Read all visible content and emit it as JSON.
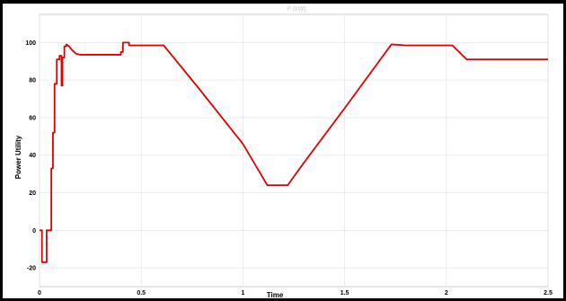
{
  "chart_data": {
    "type": "line",
    "title": "P (kW)",
    "xlabel": "Time",
    "ylabel": "Power Utility",
    "xlim": [
      0,
      2.5
    ],
    "ylim": [
      -30,
      115
    ],
    "xticks": [
      0,
      0.5,
      1,
      1.5,
      2,
      2.5
    ],
    "xtick_labels": [
      "0",
      "0.5",
      "1",
      "1.5",
      "2",
      "2.5"
    ],
    "yticks": [
      -20,
      0,
      20,
      40,
      60,
      80,
      100
    ],
    "ytick_labels": [
      "-20",
      "0",
      "20",
      "40",
      "60",
      "80",
      "100"
    ],
    "grid": true,
    "series": [
      {
        "color": "#e00000",
        "x": [
          0,
          0.012,
          0.012,
          0.035,
          0.035,
          0.058,
          0.058,
          0.066,
          0.066,
          0.074,
          0.074,
          0.085,
          0.085,
          0.098,
          0.098,
          0.108,
          0.108,
          0.113,
          0.113,
          0.122,
          0.122,
          0.132,
          0.132,
          0.145,
          0.16,
          0.18,
          0.2,
          0.22,
          0.26,
          0.3,
          0.34,
          0.4,
          0.4,
          0.41,
          0.41,
          0.44,
          0.44,
          0.5,
          0.55,
          0.6,
          0.61,
          0.78,
          1.0,
          1.12,
          1.2,
          1.22,
          1.3,
          1.5,
          1.73,
          1.8,
          2.0,
          2.03,
          2.1,
          2.3,
          2.5
        ],
        "y": [
          0,
          0,
          -17,
          -17,
          0,
          0,
          33,
          33,
          52,
          52,
          78,
          78,
          91,
          91,
          93,
          93,
          77,
          77,
          92,
          92,
          98,
          98,
          99,
          98,
          96,
          94,
          93.5,
          93.5,
          93.5,
          93.5,
          93.5,
          93.5,
          95,
          95,
          100,
          100,
          98.5,
          98.5,
          98.5,
          98.5,
          98.5,
          76,
          46,
          24,
          24,
          24,
          36,
          65,
          99,
          98.5,
          98.5,
          98.5,
          91,
          91,
          91
        ]
      }
    ]
  }
}
